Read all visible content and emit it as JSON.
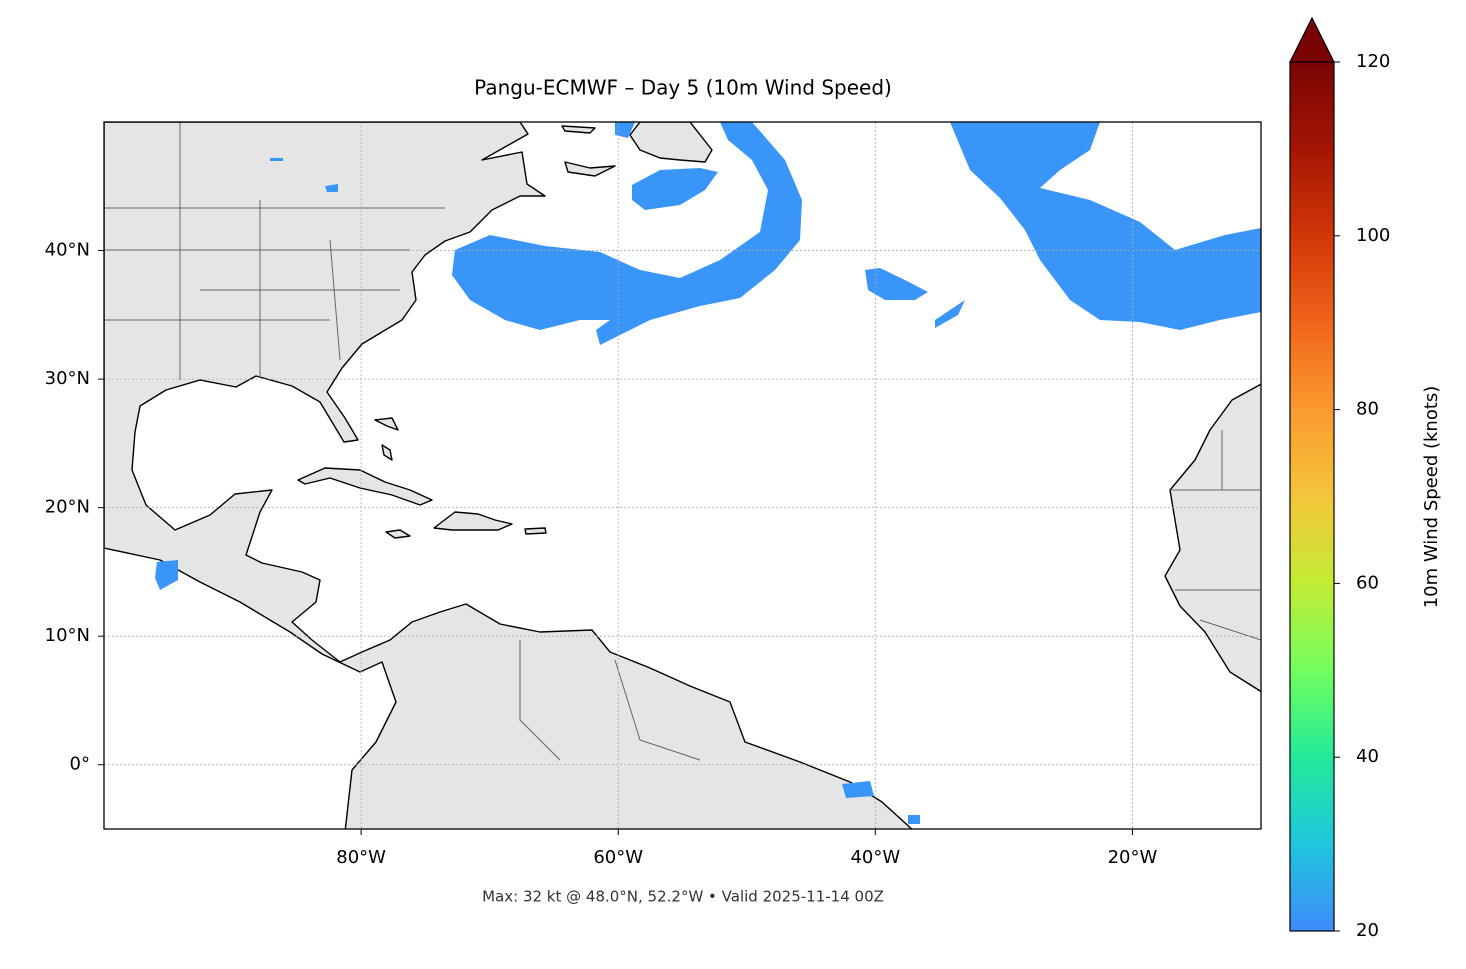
{
  "chart_data": {
    "type": "map",
    "title": "Pangu-ECMWF – Day 5 (10m Wind Speed)",
    "footnote": "Max: 32 kt @ 48.0°N, 52.2°W • Valid 2025-11-14 00Z",
    "xlim": [
      -100,
      -10
    ],
    "ylim": [
      -5,
      50
    ],
    "xticks": [
      {
        "value": -80,
        "label": "80°W"
      },
      {
        "value": -60,
        "label": "60°W"
      },
      {
        "value": -40,
        "label": "40°W"
      },
      {
        "value": -20,
        "label": "20°W"
      }
    ],
    "yticks": [
      {
        "value": 0,
        "label": "0°"
      },
      {
        "value": 10,
        "label": "10°N"
      },
      {
        "value": 20,
        "label": "20°N"
      },
      {
        "value": 30,
        "label": "30°N"
      },
      {
        "value": 40,
        "label": "40°N"
      }
    ],
    "grid": true,
    "colorbar": {
      "label": "10m Wind Speed (knots)",
      "lim": [
        20,
        120
      ],
      "ticks": [
        20,
        40,
        60,
        80,
        100,
        120
      ],
      "extend": "max"
    }
  }
}
